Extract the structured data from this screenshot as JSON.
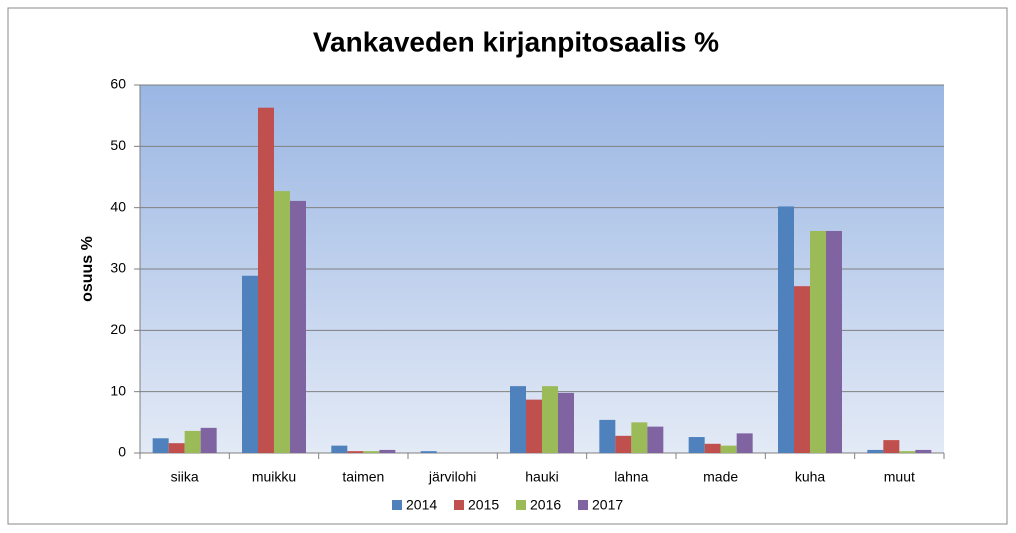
{
  "chart_data": {
    "type": "bar",
    "title": "Vankaveden kirjanpitosaalis %",
    "y_label": "osuus %",
    "categories": [
      "siika",
      "muikku",
      "taimen",
      "järvilohi",
      "hauki",
      "lahna",
      "made",
      "kuha",
      "muut"
    ],
    "series": [
      {
        "name": "2014",
        "color": "#4f81bd",
        "values": [
          2.4,
          28.9,
          1.2,
          0.3,
          10.9,
          5.4,
          2.6,
          40.2,
          0.5
        ]
      },
      {
        "name": "2015",
        "color": "#c0504d",
        "values": [
          1.6,
          56.3,
          0.3,
          0,
          8.7,
          2.8,
          1.5,
          27.2,
          2.1
        ]
      },
      {
        "name": "2016",
        "color": "#9bbb59",
        "values": [
          3.6,
          42.7,
          0.3,
          0,
          10.9,
          5.0,
          1.2,
          36.2,
          0.3
        ]
      },
      {
        "name": "2017",
        "color": "#8064a2",
        "values": [
          4.1,
          41.1,
          0.5,
          0,
          9.8,
          4.3,
          3.2,
          36.2,
          0.5
        ]
      }
    ],
    "ylim": [
      0,
      60
    ],
    "yticks": [
      0,
      10,
      20,
      30,
      40,
      50,
      60
    ],
    "grid": true,
    "legend": "bottom"
  }
}
